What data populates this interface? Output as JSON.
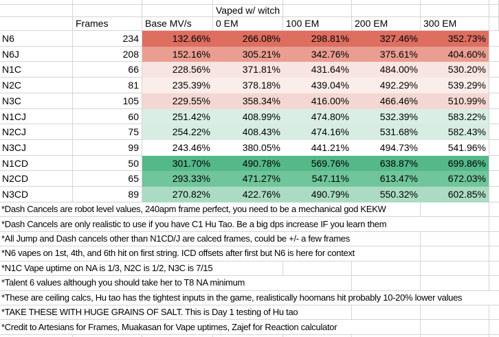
{
  "sheet": {
    "banner": "Vaped w/ witch",
    "columns": {
      "frames": "Frames",
      "base": "Base MV/s",
      "em0": "0 EM",
      "em100": "100 EM",
      "em200": "200 EM",
      "em300": "300 EM"
    },
    "rows": [
      {
        "label": "N6",
        "frames": "234",
        "color": "#dd6e60",
        "values": [
          "132.66%",
          "266.08%",
          "298.81%",
          "327.46%",
          "352.73%"
        ]
      },
      {
        "label": "N6J",
        "frames": "208",
        "color": "#ea9d91",
        "values": [
          "152.16%",
          "305.21%",
          "342.76%",
          "375.61%",
          "404.60%"
        ]
      },
      {
        "label": "N1C",
        "frames": "66",
        "color": "#f8e4e1",
        "values": [
          "228.56%",
          "371.81%",
          "431.64%",
          "484.00%",
          "530.20%"
        ]
      },
      {
        "label": "N2C",
        "frames": "81",
        "color": "#faedea",
        "values": [
          "235.39%",
          "378.18%",
          "439.04%",
          "492.29%",
          "539.29%"
        ]
      },
      {
        "label": "N3C",
        "frames": "105",
        "color": "#f4d7d2",
        "values": [
          "229.55%",
          "358.34%",
          "416.00%",
          "466.46%",
          "510.99%"
        ]
      },
      {
        "label": "N1CJ",
        "frames": "60",
        "color": "#d9eee4",
        "values": [
          "251.42%",
          "408.99%",
          "474.80%",
          "532.39%",
          "583.22%"
        ]
      },
      {
        "label": "N2CJ",
        "frames": "75",
        "color": "#d7ede2",
        "values": [
          "254.22%",
          "408.43%",
          "474.16%",
          "531.68%",
          "582.43%"
        ]
      },
      {
        "label": "N3CJ",
        "frames": "99",
        "color": "#ffffff",
        "values": [
          "243.46%",
          "380.05%",
          "441.21%",
          "494.73%",
          "541.96%"
        ]
      },
      {
        "label": "N1CD",
        "frames": "50",
        "color": "#54b888",
        "values": [
          "301.70%",
          "490.78%",
          "569.76%",
          "638.87%",
          "699.86%"
        ]
      },
      {
        "label": "N2CD",
        "frames": "65",
        "color": "#70c59b",
        "values": [
          "293.33%",
          "471.27%",
          "547.11%",
          "613.47%",
          "672.03%"
        ]
      },
      {
        "label": "N3CD",
        "frames": "89",
        "color": "#abdcc3",
        "values": [
          "270.82%",
          "422.76%",
          "490.79%",
          "550.32%",
          "602.85%"
        ]
      }
    ],
    "notes": [
      "*Dash Cancels are robot level values, 240apm frame perfect, you need to be a mechanical god KEKW",
      "*Dash Cancels are only realistic to use if you have C1 Hu Tao. Be a big dps increase IF you learn them",
      "*All Jump and Dash cancels other than N1CD/J are calced frames, could be +/- a few frames",
      "*N6 vapes on 1st, 4th, and 6th hit on first string. ICD offsets after first but N6 is here for context",
      "*N1C Vape uptime on NA is 1/3, N2C is 1/2, N3C is 7/15",
      "*Talent 6 values although you should take her to T8 NA minimum",
      "*These are ceiling calcs, Hu tao has the tightest inputs in the game, realistically hoomans hit probably 10-20% lower values",
      "*TAKE THESE WITH HUGE GRAINS OF SALT. This is Day 1 testing of Hu tao",
      "*Credit to Artesians for Frames, Muakasan for Vape uptimes, Zajef for Reaction calculator"
    ],
    "colors": {
      "gridline": "#d4d4d4",
      "text": "#000000",
      "scale_low": "#dd6e60",
      "scale_mid": "#ffffff",
      "scale_high": "#54b888"
    }
  }
}
